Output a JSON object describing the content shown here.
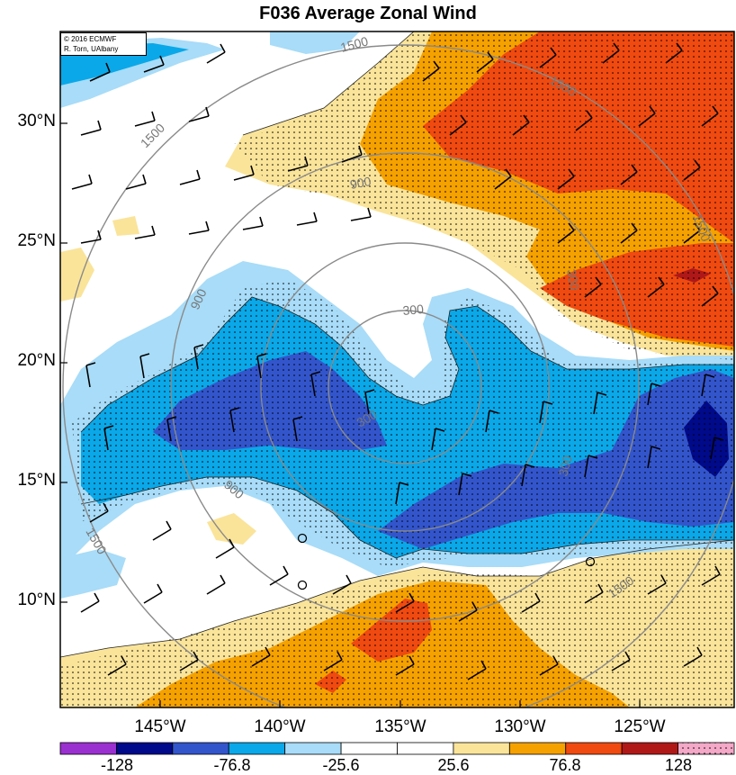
{
  "title": "F036 Average Zonal Wind",
  "credit": {
    "line1": "© 2016 ECMWF",
    "line2": "R. Torn, UAlbany"
  },
  "lat_labels": [
    "30°N",
    "25°N",
    "20°N",
    "15°N",
    "10°N"
  ],
  "lon_labels": [
    "145°W",
    "140°W",
    "135°W",
    "130°W",
    "125°W"
  ],
  "colorbar": {
    "labels": [
      "-128",
      "-76.8",
      "-25.6",
      "25.6",
      "76.8",
      "128"
    ],
    "colors": [
      "#9b30d0",
      "#000a8a",
      "#3355cc",
      "#0aa8e8",
      "#a8dcf8",
      "#ffffff",
      "#ffffff",
      "#fae49a",
      "#f5a100",
      "#f04a10",
      "#b01818",
      "#f4a8c8"
    ]
  },
  "contour_labels": [
    "1500",
    "1500",
    "1500",
    "1500",
    "1500",
    "1500",
    "900",
    "900",
    "900",
    "300",
    "300",
    "300",
    "300"
  ],
  "fill_colors": {
    "dark_blue": "#000a8a",
    "blue": "#3355cc",
    "cyan": "#0aa8e8",
    "light_blue": "#a8dcf8",
    "white": "#ffffff",
    "light_yellow": "#fae49a",
    "orange": "#f5a100",
    "red_orange": "#f04a10",
    "dark_red": "#b01818"
  },
  "markers": [
    "circle",
    "circle",
    "circle"
  ]
}
